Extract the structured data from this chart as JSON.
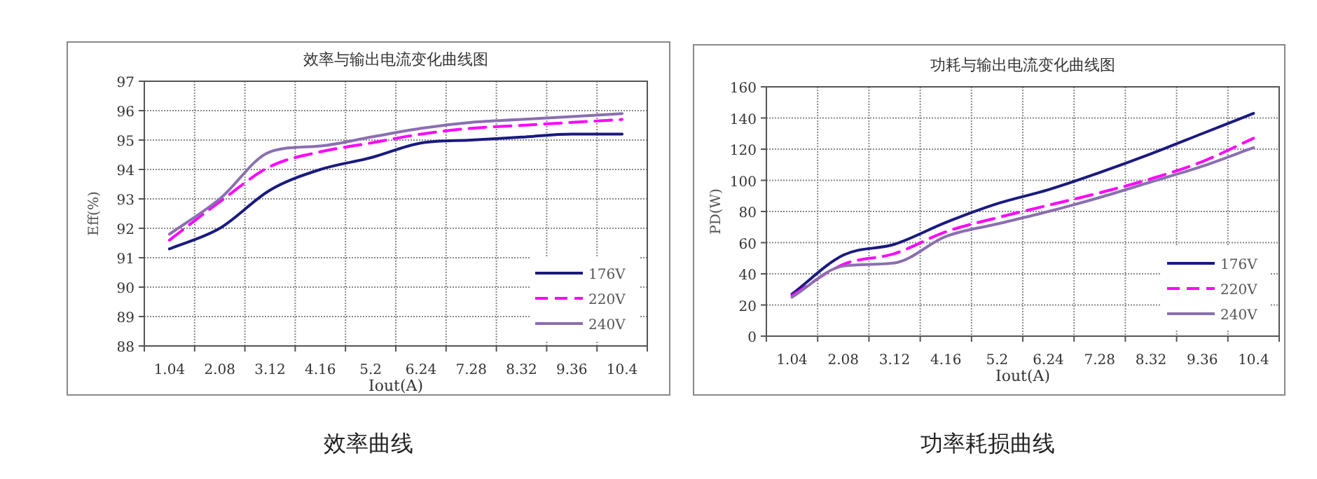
{
  "chart_data": [
    {
      "type": "line",
      "title": "效率与输出电流变化曲线图",
      "xlabel": "Iout(A)",
      "ylabel": "Eff(%)",
      "categories": [
        "1.04",
        "2.08",
        "3.12",
        "4.16",
        "5.2",
        "6.24",
        "7.28",
        "8.32",
        "9.36",
        "10.4"
      ],
      "series": [
        {
          "name": "176V",
          "color": "#1a1a80",
          "line_style": "solid",
          "values": [
            91.3,
            92.0,
            93.3,
            94.0,
            94.4,
            94.9,
            95.0,
            95.1,
            95.2,
            95.2
          ]
        },
        {
          "name": "220V",
          "color": "#ff00ff",
          "line_style": "dashed",
          "values": [
            91.6,
            92.9,
            94.1,
            94.6,
            94.9,
            95.2,
            95.4,
            95.5,
            95.6,
            95.7
          ]
        },
        {
          "name": "240V",
          "color": "#8a6fb0",
          "line_style": "solid",
          "values": [
            91.8,
            93.0,
            94.6,
            94.8,
            95.1,
            95.4,
            95.6,
            95.7,
            95.8,
            95.9
          ]
        }
      ],
      "ylim": [
        88,
        97
      ],
      "yticks": [
        88,
        89,
        90,
        91,
        92,
        93,
        94,
        95,
        96,
        97
      ],
      "grid": true,
      "legend": "bottom right",
      "annotations": [
        "效率曲线"
      ]
    },
    {
      "type": "line",
      "title": "功耗与输出电流变化曲线图",
      "xlabel": "Iout(A)",
      "ylabel": "PD(W)",
      "categories": [
        "1.04",
        "2.08",
        "3.12",
        "4.16",
        "5.2",
        "6.24",
        "7.28",
        "8.32",
        "9.36",
        "10.4"
      ],
      "series": [
        {
          "name": "176V",
          "color": "#1a1a80",
          "line_style": "solid",
          "values": [
            27,
            52,
            59,
            73,
            85,
            94,
            105,
            117,
            130,
            143
          ]
        },
        {
          "name": "220V",
          "color": "#ff00ff",
          "line_style": "dashed",
          "values": [
            26,
            46,
            53,
            67,
            76,
            84,
            92,
            101,
            112,
            127
          ]
        },
        {
          "name": "240V",
          "color": "#8a6fb0",
          "line_style": "solid",
          "values": [
            25,
            45,
            47,
            64,
            72,
            80,
            89,
            99,
            109,
            121
          ]
        }
      ],
      "ylim": [
        0,
        160
      ],
      "yticks": [
        0,
        20,
        40,
        60,
        80,
        100,
        120,
        140,
        160
      ],
      "grid": true,
      "legend": "bottom right",
      "annotations": [
        "功率耗损曲线"
      ]
    }
  ]
}
